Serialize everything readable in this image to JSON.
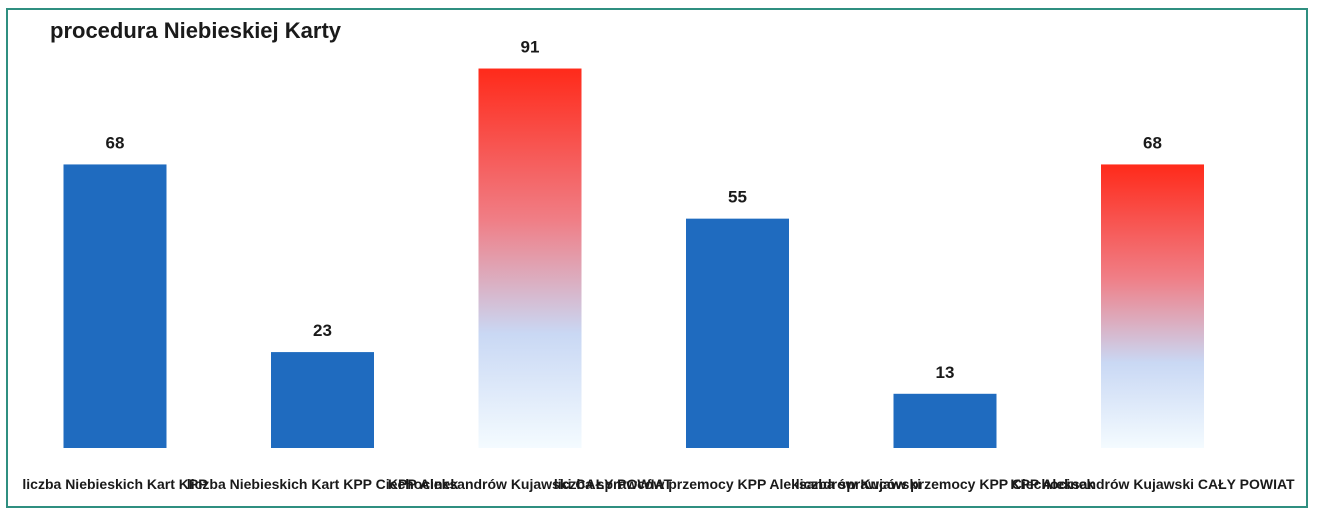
{
  "chart_data": {
    "type": "bar",
    "title": "procedura Niebieskiej Karty",
    "categories": [
      "liczba Niebieskich Kart KPP",
      "liczba Niebieskich Kart KPP Ciechocinek",
      "KPP Aleksandrów Kujawski CAŁY POWIAT",
      "liczba sprawców przemocy KPP Aleksandrów Kujawski",
      "liczba sprawców przemocy KPP Ciechocinek",
      "KPP Aleksandrów Kujawski CAŁY POWIAT"
    ],
    "values": [
      68,
      23,
      91,
      55,
      13,
      68
    ],
    "bar_colors": [
      "#1f6bbf",
      "#1f6bbf",
      "gradient-red-white",
      "#1f6bbf",
      "#1f6bbf",
      "gradient-red-white"
    ],
    "ylim": [
      0,
      95
    ],
    "grid": false,
    "legend": "none"
  }
}
